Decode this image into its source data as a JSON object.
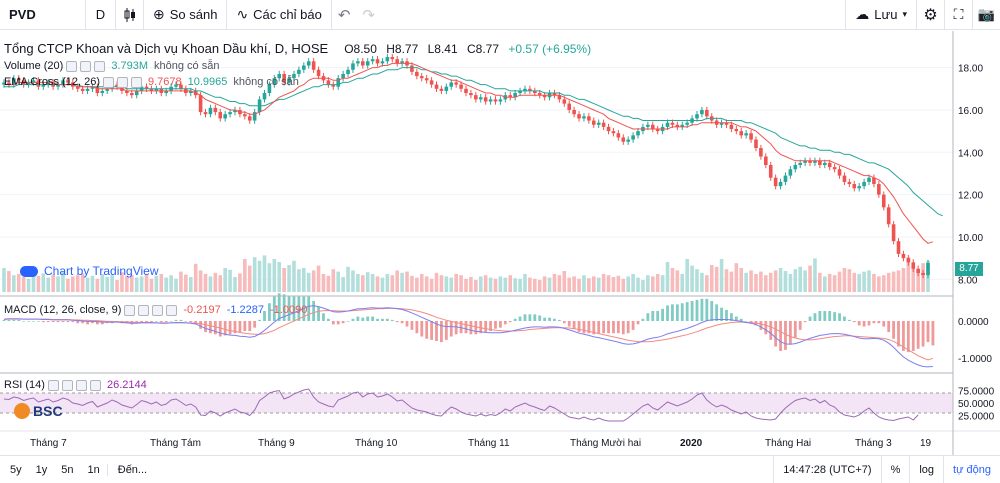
{
  "toolbar": {
    "symbol": "PVD",
    "interval": "D",
    "compare_label": "So sánh",
    "indicators_label": "Các chỉ báo",
    "save_label": "Lưu"
  },
  "main_legend": {
    "title": "Tổng CTCP Khoan và Dịch vụ Khoan Dầu khí, D, HOSE",
    "open": "O8.50",
    "high": "H8.77",
    "low": "L8.41",
    "close": "C8.77",
    "change": "+0.57 (+6.95%)"
  },
  "volume_legend": {
    "label": "Volume (20)",
    "value": "3.793M",
    "na": "không có sẵn"
  },
  "ema_legend": {
    "label": "EMA Cross (12, 26)",
    "v1": "9.7678",
    "v2": "10.9965",
    "na": "không có sẵn"
  },
  "macd_legend": {
    "label": "MACD (12, 26, close, 9)",
    "hist": "-0.2197",
    "macd": "-1.2287",
    "signal": "-1.0090"
  },
  "rsi_legend": {
    "label": "RSI (14)",
    "value": "26.2144"
  },
  "watermark": "Chart by TradingView",
  "broker_logo": "BSC",
  "price_badge": "8.77",
  "price_axis": [
    "18.00",
    "16.00",
    "14.00",
    "12.00",
    "10.00",
    "8.00"
  ],
  "macd_axis": [
    "0.0000",
    "-1.0000"
  ],
  "rsi_axis": [
    "75.0000",
    "50.0000",
    "25.0000"
  ],
  "time_axis": [
    {
      "label": "Tháng 7",
      "bold": false
    },
    {
      "label": "Tháng Tám",
      "bold": false
    },
    {
      "label": "Tháng 9",
      "bold": false
    },
    {
      "label": "Tháng 10",
      "bold": false
    },
    {
      "label": "Tháng 11",
      "bold": false
    },
    {
      "label": "Tháng Mười hai",
      "bold": false
    },
    {
      "label": "2020",
      "bold": true
    },
    {
      "label": "Tháng Hai",
      "bold": false
    },
    {
      "label": "Tháng 3",
      "bold": false
    },
    {
      "label": "19",
      "bold": false
    }
  ],
  "bottom": {
    "ranges": [
      "5y",
      "1y",
      "5n",
      "1n"
    ],
    "goto": "Đến...",
    "time": "14:47:28 (UTC+7)",
    "percent": "%",
    "log": "log",
    "auto": "tự động"
  },
  "colors": {
    "up": "#26a69a",
    "down": "#ef5350",
    "ema_fast": "#ef5350",
    "ema_slow": "#26a69a",
    "macd": "#7b7ff0",
    "signal": "#f28b82",
    "rsi": "#9c6ab8",
    "rsi_band": "#f3e5f5"
  },
  "chart_data": {
    "type": "candlestick",
    "price_range": [
      7.4,
      19.4
    ],
    "closes": [
      17.3,
      17.2,
      17.5,
      17.4,
      17.2,
      17.3,
      17.4,
      17.1,
      17.2,
      17.3,
      17.1,
      17.2,
      17.4,
      17.3,
      17.1,
      17.0,
      16.9,
      17.0,
      17.1,
      16.8,
      16.9,
      17.0,
      17.2,
      17.1,
      16.9,
      16.8,
      16.7,
      16.9,
      17.1,
      17.0,
      16.9,
      17.0,
      16.8,
      16.9,
      17.1,
      17.2,
      17.0,
      16.8,
      16.9,
      16.7,
      15.9,
      15.8,
      16.1,
      15.9,
      15.6,
      15.8,
      15.9,
      16.0,
      15.8,
      15.7,
      15.5,
      15.9,
      16.5,
      16.8,
      17.2,
      17.5,
      17.7,
      17.3,
      17.5,
      17.7,
      17.9,
      18.1,
      18.3,
      17.9,
      17.6,
      17.4,
      17.2,
      17.1,
      17.5,
      17.7,
      17.9,
      18.2,
      18.3,
      18.1,
      18.3,
      18.4,
      18.2,
      18.3,
      18.5,
      18.4,
      18.2,
      18.3,
      18.1,
      17.8,
      17.6,
      17.5,
      17.4,
      17.2,
      17.0,
      16.9,
      17.1,
      17.3,
      17.2,
      17.0,
      16.8,
      16.7,
      16.5,
      16.6,
      16.4,
      16.5,
      16.4,
      16.5,
      16.7,
      16.6,
      16.8,
      16.9,
      17.0,
      16.9,
      16.8,
      16.7,
      16.6,
      16.8,
      16.7,
      16.5,
      16.3,
      16.0,
      15.8,
      15.6,
      15.7,
      15.5,
      15.3,
      15.4,
      15.2,
      15.0,
      14.9,
      14.7,
      14.5,
      14.6,
      14.8,
      15.0,
      15.2,
      15.3,
      15.1,
      15.0,
      15.2,
      15.4,
      15.3,
      15.2,
      15.3,
      15.4,
      15.6,
      15.8,
      16.0,
      15.7,
      15.5,
      15.3,
      15.4,
      15.3,
      15.1,
      15.0,
      14.8,
      14.9,
      14.6,
      14.2,
      13.8,
      13.4,
      12.8,
      12.4,
      12.6,
      12.9,
      13.2,
      13.4,
      13.5,
      13.6,
      13.5,
      13.6,
      13.4,
      13.5,
      13.3,
      13.2,
      12.9,
      12.6,
      12.5,
      12.3,
      12.4,
      12.6,
      12.8,
      12.5,
      12.0,
      11.4,
      10.6,
      9.8,
      9.2,
      9.0,
      8.8,
      8.5,
      8.3,
      8.2,
      8.77
    ],
    "ema_fast": [
      17.2,
      17.2,
      17.2,
      17.3,
      17.3,
      17.3,
      17.3,
      17.3,
      17.3,
      17.3,
      17.3,
      17.2,
      17.2,
      17.2,
      17.2,
      17.1,
      17.1,
      17.1,
      17.1,
      17.0,
      17.0,
      17.0,
      17.0,
      17.0,
      17.0,
      16.9,
      16.9,
      16.9,
      16.9,
      16.9,
      16.9,
      16.9,
      16.9,
      16.9,
      16.9,
      16.9,
      16.9,
      16.9,
      16.9,
      16.8,
      16.7,
      16.5,
      16.4,
      16.3,
      16.2,
      16.1,
      16.0,
      16.0,
      15.9,
      15.9,
      15.8,
      15.8,
      15.9,
      16.0,
      16.2,
      16.4,
      16.6,
      16.7,
      16.8,
      16.9,
      17.1,
      17.2,
      17.4,
      17.5,
      17.5,
      17.5,
      17.5,
      17.4,
      17.4,
      17.5,
      17.5,
      17.6,
      17.7,
      17.8,
      17.9,
      18.0,
      18.0,
      18.1,
      18.1,
      18.2,
      18.2,
      18.2,
      18.2,
      18.2,
      18.1,
      18.0,
      17.9,
      17.8,
      17.7,
      17.6,
      17.5,
      17.4,
      17.4,
      17.3,
      17.2,
      17.1,
      17.0,
      16.9,
      16.8,
      16.8,
      16.7,
      16.7,
      16.6,
      16.6,
      16.6,
      16.7,
      16.7,
      16.7,
      16.7,
      16.7,
      16.7,
      16.7,
      16.7,
      16.7,
      16.6,
      16.5,
      16.4,
      16.3,
      16.2,
      16.1,
      16.0,
      15.9,
      15.8,
      15.6,
      15.5,
      15.4,
      15.3,
      15.2,
      15.1,
      15.1,
      15.1,
      15.1,
      15.1,
      15.1,
      15.1,
      15.1,
      15.2,
      15.2,
      15.2,
      15.2,
      15.3,
      15.3,
      15.4,
      15.4,
      15.4,
      15.4,
      15.4,
      15.4,
      15.4,
      15.3,
      15.2,
      15.2,
      15.1,
      15.0,
      14.8,
      14.6,
      14.4,
      14.1,
      13.9,
      13.8,
      13.7,
      13.6,
      13.6,
      13.6,
      13.6,
      13.6,
      13.6,
      13.6,
      13.6,
      13.5,
      13.4,
      13.3,
      13.2,
      13.1,
      13.0,
      12.9,
      12.9,
      12.8,
      12.7,
      12.5,
      12.2,
      11.9,
      11.5,
      11.1,
      10.8,
      10.5,
      10.2,
      9.9,
      9.7,
      9.77
    ],
    "ema_slow": [
      17.1,
      17.1,
      17.1,
      17.2,
      17.2,
      17.2,
      17.2,
      17.2,
      17.2,
      17.2,
      17.2,
      17.2,
      17.2,
      17.2,
      17.2,
      17.2,
      17.1,
      17.1,
      17.1,
      17.1,
      17.1,
      17.1,
      17.1,
      17.1,
      17.1,
      17.0,
      17.0,
      17.0,
      17.0,
      17.0,
      17.0,
      17.0,
      17.0,
      17.0,
      17.0,
      17.0,
      17.0,
      17.0,
      17.0,
      16.9,
      16.9,
      16.8,
      16.7,
      16.6,
      16.6,
      16.5,
      16.4,
      16.4,
      16.3,
      16.3,
      16.2,
      16.2,
      16.2,
      16.2,
      16.3,
      16.4,
      16.5,
      16.5,
      16.6,
      16.7,
      16.8,
      16.9,
      17.0,
      17.1,
      17.1,
      17.2,
      17.2,
      17.2,
      17.2,
      17.3,
      17.3,
      17.4,
      17.5,
      17.5,
      17.6,
      17.7,
      17.7,
      17.8,
      17.9,
      17.9,
      17.9,
      18.0,
      18.0,
      18.0,
      18.0,
      17.9,
      17.9,
      17.8,
      17.8,
      17.7,
      17.7,
      17.6,
      17.6,
      17.5,
      17.4,
      17.4,
      17.3,
      17.2,
      17.2,
      17.1,
      17.0,
      17.0,
      17.0,
      16.9,
      16.9,
      16.9,
      16.9,
      16.9,
      16.9,
      16.9,
      16.8,
      16.8,
      16.8,
      16.8,
      16.7,
      16.7,
      16.6,
      16.5,
      16.5,
      16.4,
      16.3,
      16.2,
      16.1,
      16.0,
      15.9,
      15.8,
      15.7,
      15.7,
      15.6,
      15.6,
      15.5,
      15.5,
      15.5,
      15.5,
      15.5,
      15.5,
      15.5,
      15.5,
      15.5,
      15.5,
      15.5,
      15.5,
      15.5,
      15.6,
      15.6,
      15.6,
      15.6,
      15.5,
      15.5,
      15.5,
      15.5,
      15.4,
      15.4,
      15.3,
      15.2,
      15.1,
      15.0,
      14.9,
      14.7,
      14.6,
      14.5,
      14.4,
      14.3,
      14.3,
      14.2,
      14.2,
      14.1,
      14.1,
      14.1,
      14.0,
      14.0,
      13.9,
      13.9,
      13.8,
      13.7,
      13.6,
      13.5,
      13.5,
      13.4,
      13.3,
      13.2,
      13.0,
      12.8,
      12.6,
      12.4,
      12.1,
      11.9,
      11.7,
      11.5,
      11.3,
      11.1,
      11.0
    ],
    "volume_pct": [
      40,
      35,
      28,
      30,
      25,
      22,
      33,
      27,
      31,
      24,
      29,
      26,
      35,
      22,
      26,
      28,
      31,
      24,
      27,
      22,
      30,
      25,
      28,
      20,
      33,
      27,
      29,
      24,
      26,
      30,
      22,
      27,
      30,
      24,
      28,
      22,
      34,
      29,
      25,
      47,
      36,
      30,
      26,
      32,
      28,
      40,
      37,
      25,
      31,
      55,
      44,
      58,
      52,
      61,
      48,
      55,
      50,
      40,
      45,
      52,
      38,
      40,
      32,
      36,
      44,
      30,
      27,
      38,
      34,
      25,
      42,
      36,
      30,
      28,
      33,
      30,
      26,
      24,
      30,
      28,
      36,
      32,
      34,
      27,
      24,
      30,
      26,
      22,
      32,
      28,
      26,
      24,
      30,
      28,
      22,
      25,
      20,
      26,
      28,
      24,
      22,
      26,
      24,
      28,
      23,
      22,
      30,
      24,
      22,
      20,
      26,
      24,
      30,
      28,
      35,
      24,
      26,
      22,
      28,
      23,
      26,
      24,
      30,
      28,
      25,
      27,
      22,
      26,
      30,
      24,
      20,
      28,
      26,
      30,
      28,
      50,
      40,
      36,
      30,
      55,
      44,
      38,
      32,
      28,
      45,
      42,
      55,
      38,
      34,
      48,
      40,
      32,
      36,
      30,
      34,
      28,
      32,
      36,
      40,
      35,
      30,
      38,
      42,
      36,
      44,
      56,
      32,
      26,
      30,
      28,
      34,
      40,
      38,
      32,
      30,
      34,
      36,
      30,
      26,
      28,
      32,
      34,
      36,
      40,
      58,
      44,
      35,
      48,
      52,
      60,
      40,
      36
    ],
    "macd_line": [
      0.05,
      0.06,
      0.06,
      0.06,
      0.05,
      0.05,
      0.05,
      0.05,
      0.04,
      0.04,
      0.03,
      0.03,
      0.03,
      0.03,
      0.02,
      0.01,
      0.0,
      -0.01,
      -0.01,
      -0.02,
      -0.03,
      -0.03,
      -0.03,
      -0.03,
      -0.04,
      -0.05,
      -0.06,
      -0.06,
      -0.05,
      -0.05,
      -0.05,
      -0.05,
      -0.06,
      -0.06,
      -0.05,
      -0.04,
      -0.04,
      -0.05,
      -0.06,
      -0.08,
      -0.14,
      -0.2,
      -0.24,
      -0.28,
      -0.33,
      -0.36,
      -0.38,
      -0.39,
      -0.41,
      -0.42,
      -0.44,
      -0.42,
      -0.35,
      -0.25,
      -0.14,
      -0.03,
      0.07,
      0.12,
      0.17,
      0.22,
      0.28,
      0.34,
      0.4,
      0.41,
      0.39,
      0.35,
      0.3,
      0.25,
      0.24,
      0.25,
      0.27,
      0.3,
      0.33,
      0.33,
      0.35,
      0.36,
      0.35,
      0.35,
      0.36,
      0.35,
      0.33,
      0.31,
      0.27,
      0.22,
      0.16,
      0.1,
      0.04,
      -0.02,
      -0.08,
      -0.13,
      -0.15,
      -0.15,
      -0.16,
      -0.18,
      -0.21,
      -0.25,
      -0.28,
      -0.29,
      -0.31,
      -0.32,
      -0.32,
      -0.32,
      -0.3,
      -0.28,
      -0.25,
      -0.22,
      -0.19,
      -0.17,
      -0.16,
      -0.16,
      -0.17,
      -0.16,
      -0.16,
      -0.17,
      -0.2,
      -0.24,
      -0.28,
      -0.33,
      -0.36,
      -0.39,
      -0.43,
      -0.45,
      -0.48,
      -0.51,
      -0.54,
      -0.57,
      -0.61,
      -0.63,
      -0.62,
      -0.59,
      -0.54,
      -0.49,
      -0.46,
      -0.44,
      -0.4,
      -0.35,
      -0.31,
      -0.28,
      -0.24,
      -0.2,
      -0.15,
      -0.1,
      -0.04,
      0.01,
      0.03,
      0.04,
      0.04,
      0.04,
      0.03,
      0.01,
      -0.01,
      -0.04,
      -0.06,
      -0.1,
      -0.16,
      -0.24,
      -0.33,
      -0.45,
      -0.56,
      -0.62,
      -0.63,
      -0.61,
      -0.57,
      -0.52,
      -0.47,
      -0.43,
      -0.39,
      -0.37,
      -0.35,
      -0.34,
      -0.34,
      -0.36,
      -0.39,
      -0.42,
      -0.46,
      -0.48,
      -0.48,
      -0.47,
      -0.48,
      -0.52,
      -0.6,
      -0.71,
      -0.85,
      -0.97,
      -1.06,
      -1.13,
      -1.19,
      -1.23,
      -1.24,
      -1.2287
    ],
    "signal_line": [
      0.04,
      0.05,
      0.05,
      0.05,
      0.05,
      0.05,
      0.05,
      0.05,
      0.05,
      0.05,
      0.04,
      0.04,
      0.04,
      0.04,
      0.03,
      0.03,
      0.02,
      0.02,
      0.01,
      0.01,
      0.0,
      -0.01,
      -0.01,
      -0.02,
      -0.02,
      -0.03,
      -0.03,
      -0.04,
      -0.04,
      -0.04,
      -0.04,
      -0.05,
      -0.05,
      -0.05,
      -0.05,
      -0.05,
      -0.05,
      -0.05,
      -0.05,
      -0.06,
      -0.07,
      -0.1,
      -0.13,
      -0.16,
      -0.19,
      -0.23,
      -0.26,
      -0.28,
      -0.31,
      -0.33,
      -0.35,
      -0.36,
      -0.36,
      -0.34,
      -0.3,
      -0.25,
      -0.18,
      -0.12,
      -0.06,
      0.0,
      0.06,
      0.12,
      0.18,
      0.23,
      0.26,
      0.28,
      0.28,
      0.28,
      0.27,
      0.27,
      0.27,
      0.28,
      0.29,
      0.3,
      0.31,
      0.32,
      0.33,
      0.33,
      0.34,
      0.34,
      0.34,
      0.33,
      0.32,
      0.3,
      0.27,
      0.24,
      0.2,
      0.15,
      0.1,
      0.06,
      0.02,
      -0.01,
      -0.04,
      -0.07,
      -0.1,
      -0.13,
      -0.16,
      -0.18,
      -0.21,
      -0.23,
      -0.25,
      -0.26,
      -0.27,
      -0.27,
      -0.27,
      -0.26,
      -0.25,
      -0.23,
      -0.22,
      -0.21,
      -0.2,
      -0.19,
      -0.18,
      -0.18,
      -0.18,
      -0.19,
      -0.21,
      -0.23,
      -0.25,
      -0.28,
      -0.31,
      -0.34,
      -0.37,
      -0.4,
      -0.43,
      -0.46,
      -0.49,
      -0.52,
      -0.54,
      -0.56,
      -0.56,
      -0.56,
      -0.55,
      -0.53,
      -0.51,
      -0.49,
      -0.46,
      -0.43,
      -0.4,
      -0.37,
      -0.33,
      -0.29,
      -0.24,
      -0.19,
      -0.15,
      -0.11,
      -0.08,
      -0.06,
      -0.04,
      -0.03,
      -0.03,
      -0.04,
      -0.04,
      -0.06,
      -0.08,
      -0.12,
      -0.16,
      -0.22,
      -0.29,
      -0.36,
      -0.42,
      -0.46,
      -0.49,
      -0.51,
      -0.51,
      -0.5,
      -0.48,
      -0.46,
      -0.44,
      -0.42,
      -0.41,
      -0.4,
      -0.4,
      -0.41,
      -0.42,
      -0.43,
      -0.44,
      -0.45,
      -0.46,
      -0.47,
      -0.5,
      -0.55,
      -0.62,
      -0.7,
      -0.78,
      -0.86,
      -0.94,
      -1.0,
      -1.05,
      -1.009
    ],
    "rsi_values": [
      58,
      57,
      62,
      60,
      55,
      58,
      60,
      52,
      55,
      58,
      52,
      55,
      60,
      57,
      50,
      48,
      45,
      50,
      53,
      42,
      46,
      50,
      56,
      52,
      46,
      43,
      40,
      47,
      55,
      52,
      48,
      52,
      45,
      48,
      56,
      58,
      52,
      45,
      48,
      42,
      26,
      25,
      34,
      30,
      24,
      30,
      34,
      38,
      32,
      30,
      25,
      36,
      55,
      62,
      70,
      73,
      75,
      58,
      62,
      68,
      72,
      76,
      78,
      62,
      52,
      48,
      44,
      42,
      56,
      60,
      64,
      70,
      72,
      62,
      68,
      70,
      62,
      64,
      68,
      62,
      54,
      56,
      48,
      40,
      36,
      34,
      32,
      28,
      25,
      24,
      34,
      42,
      38,
      32,
      28,
      26,
      24,
      28,
      24,
      27,
      25,
      30,
      38,
      34,
      42,
      46,
      50,
      45,
      42,
      38,
      35,
      44,
      40,
      34,
      28,
      22,
      20,
      18,
      22,
      18,
      16,
      20,
      16,
      14,
      14,
      14,
      14,
      20,
      28,
      36,
      44,
      48,
      40,
      36,
      44,
      52,
      48,
      44,
      48,
      52,
      58,
      66,
      70,
      56,
      48,
      42,
      46,
      42,
      36,
      32,
      28,
      32,
      24,
      20,
      18,
      17,
      16,
      18,
      30,
      40,
      48,
      55,
      58,
      60,
      55,
      58,
      50,
      55,
      46,
      42,
      32,
      26,
      24,
      22,
      26,
      34,
      40,
      30,
      22,
      18,
      16,
      15,
      18,
      20,
      22,
      16,
      26.2144
    ]
  }
}
